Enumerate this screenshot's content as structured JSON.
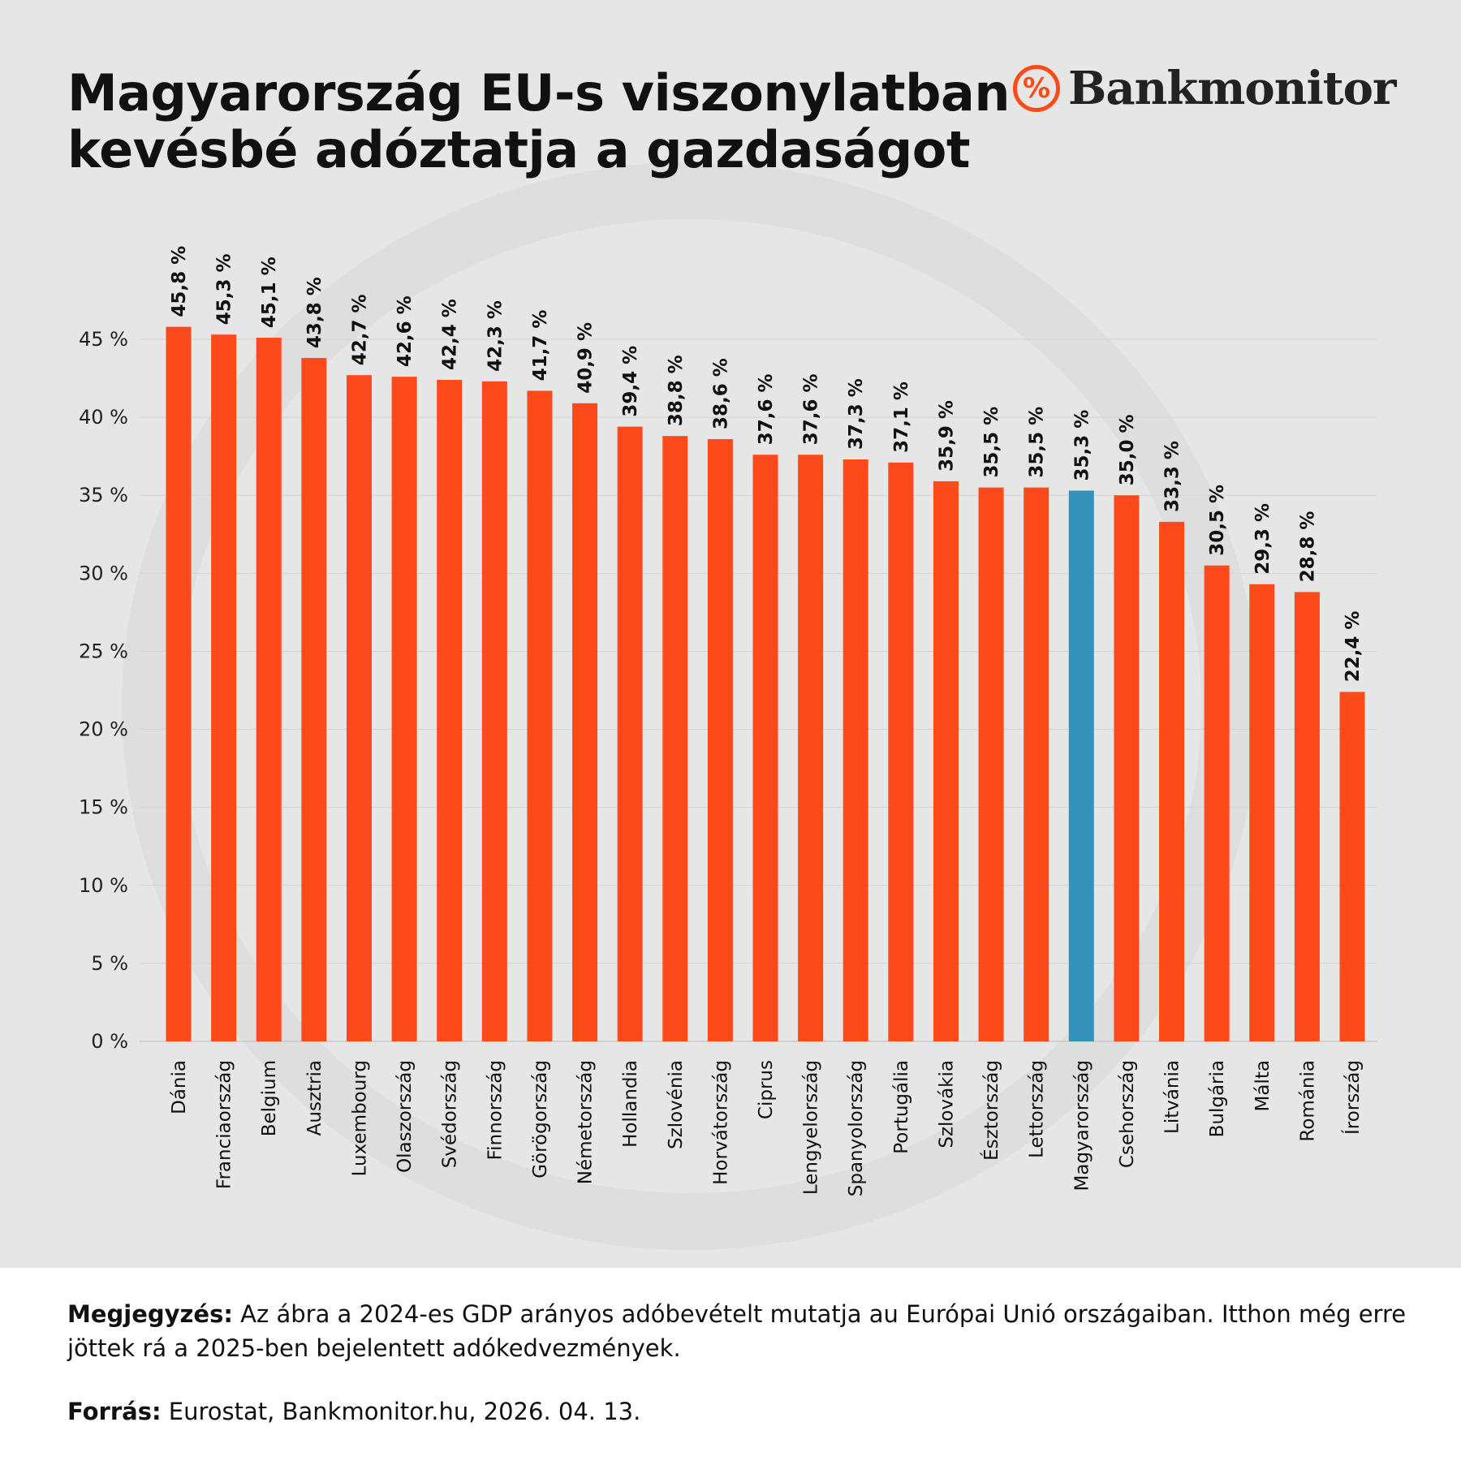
{
  "header": {
    "title_line1": "Magyarország EU-s viszonylatban",
    "title_line2": "kevésbé adóztatja a gazdaságot",
    "logo_text": "Bankmonitor",
    "logo_icon": "percent-arrow-icon"
  },
  "footer": {
    "note_label": "Megjegyzés:",
    "note_text": " Az ábra a 2024-es GDP arányos adóbevételt mutatja au Európai Unió országaiban. Itthon még erre jöttek rá a 2025-ben bejelentett adókedvezmények.",
    "source_label": "Forrás:",
    "source_text": " Eurostat, Bankmonitor.hu, 2026. 04. 13."
  },
  "colors": {
    "bar": "#fc4a1a",
    "highlight": "#3592b8",
    "background": "#e6e6e6"
  },
  "chart_data": {
    "type": "bar",
    "title": "Magyarország EU-s viszonylatban kevésbé adóztatja a gazdaságot",
    "xlabel": "",
    "ylabel": "",
    "ylim": [
      0,
      45
    ],
    "yticks": [
      0,
      5,
      10,
      15,
      20,
      25,
      30,
      35,
      40,
      45
    ],
    "ytick_labels": [
      "0 %",
      "5 %",
      "10 %",
      "15 %",
      "20 %",
      "25 %",
      "30 %",
      "35 %",
      "40 %",
      "45 %"
    ],
    "grid": true,
    "highlight": "Magyarország",
    "categories": [
      "Dánia",
      "Franciaország",
      "Belgium",
      "Ausztria",
      "Luxembourg",
      "Olaszország",
      "Svédország",
      "Finnország",
      "Görögország",
      "Németország",
      "Hollandia",
      "Szlovénia",
      "Horvátország",
      "Ciprus",
      "Lengyelország",
      "Spanyolország",
      "Portugália",
      "Szlovákia",
      "Észtország",
      "Lettország",
      "Magyarország",
      "Csehország",
      "Litvánia",
      "Bulgária",
      "Málta",
      "Románia",
      "Írország"
    ],
    "values": [
      45.8,
      45.3,
      45.1,
      43.8,
      42.7,
      42.6,
      42.4,
      42.3,
      41.7,
      40.9,
      39.4,
      38.8,
      38.6,
      37.6,
      37.6,
      37.3,
      37.1,
      35.9,
      35.5,
      35.5,
      35.3,
      35.0,
      33.3,
      30.5,
      29.3,
      28.8,
      22.4
    ],
    "data_labels": [
      "45,8 %",
      "45,3 %",
      "45,1 %",
      "43,8 %",
      "42,7 %",
      "42,6 %",
      "42,4 %",
      "42,3 %",
      "41,7 %",
      "40,9 %",
      "39,4 %",
      "38,8 %",
      "38,6 %",
      "37,6 %",
      "37,6 %",
      "37,3 %",
      "37,1 %",
      "35,9 %",
      "35,5 %",
      "35,5 %",
      "35,3 %",
      "35,0 %",
      "33,3 %",
      "30,5 %",
      "29,3 %",
      "28,8 %",
      "22,4 %"
    ]
  }
}
